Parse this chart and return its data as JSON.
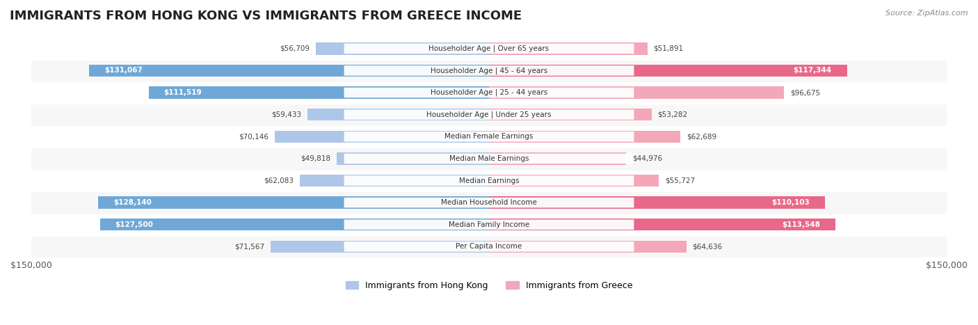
{
  "title": "IMMIGRANTS FROM HONG KONG VS IMMIGRANTS FROM GREECE INCOME",
  "source": "Source: ZipAtlas.com",
  "categories": [
    "Per Capita Income",
    "Median Family Income",
    "Median Household Income",
    "Median Earnings",
    "Median Male Earnings",
    "Median Female Earnings",
    "Householder Age | Under 25 years",
    "Householder Age | 25 - 44 years",
    "Householder Age | 45 - 64 years",
    "Householder Age | Over 65 years"
  ],
  "hk_values": [
    56709,
    131067,
    111519,
    59433,
    70146,
    49818,
    62083,
    128140,
    127500,
    71567
  ],
  "gr_values": [
    51891,
    117344,
    96675,
    53282,
    62689,
    44976,
    55727,
    110103,
    113548,
    64636
  ],
  "hk_labels": [
    "$56,709",
    "$131,067",
    "$111,519",
    "$59,433",
    "$70,146",
    "$49,818",
    "$62,083",
    "$128,140",
    "$127,500",
    "$71,567"
  ],
  "gr_labels": [
    "$51,891",
    "$117,344",
    "$96,675",
    "$53,282",
    "$62,689",
    "$44,976",
    "$55,727",
    "$110,103",
    "$113,548",
    "$64,636"
  ],
  "hk_color_light": "#aec6e8",
  "hk_color_dark": "#6fa8d6",
  "gr_color_light": "#f4a7b9",
  "gr_color_dark": "#e8688a",
  "bar_bg_color": "#f0f0f0",
  "row_bg_color": "#f7f7f7",
  "row_alt_color": "#ffffff",
  "max_value": 150000,
  "legend_hk": "Immigrants from Hong Kong",
  "legend_gr": "Immigrants from Greece",
  "hk_large_threshold": 100000,
  "gr_large_threshold": 100000
}
